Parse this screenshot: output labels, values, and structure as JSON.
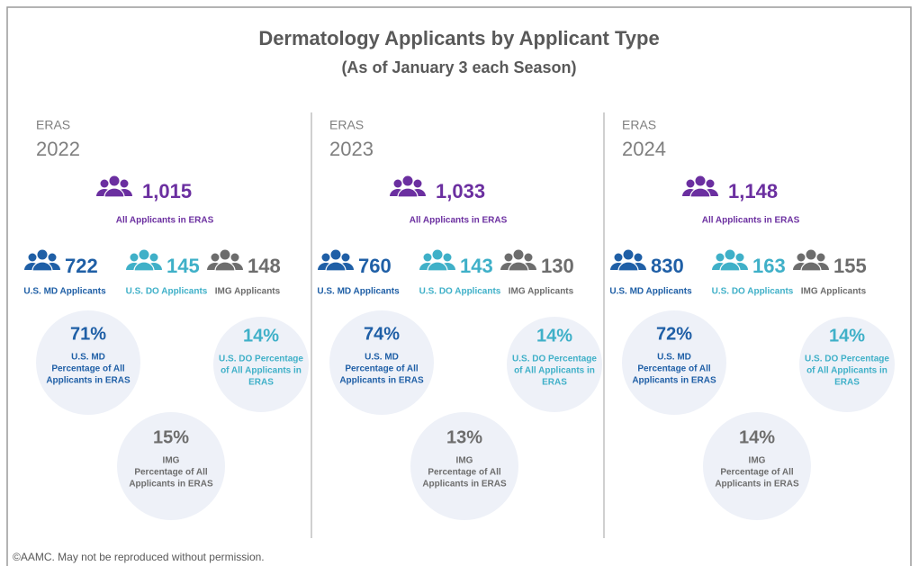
{
  "title": "Dermatology Applicants by Applicant Type",
  "subtitle": "(As of January 3 each Season)",
  "panels": [
    {
      "label": "ERAS",
      "year": "2022",
      "total": "1,015",
      "total_label": "All Applicants in ERAS",
      "groups": [
        {
          "count": "722",
          "label": "U.S. MD Applicants"
        },
        {
          "count": "145",
          "label": "U.S. DO Applicants"
        },
        {
          "count": "148",
          "label": "IMG Applicants"
        }
      ],
      "circles": [
        {
          "percent": "71%",
          "lines": [
            "U.S. MD",
            "Percentage of All",
            "Applicants in ERAS"
          ]
        },
        {
          "percent": "14%",
          "lines": [
            "U.S. DO Percentage",
            "of All Applicants in",
            "ERAS"
          ]
        },
        {
          "percent": "15%",
          "lines": [
            "IMG",
            "Percentage of All",
            "Applicants in ERAS"
          ]
        }
      ]
    },
    {
      "label": "ERAS",
      "year": "2023",
      "total": "1,033",
      "total_label": "All Applicants in ERAS",
      "groups": [
        {
          "count": "760",
          "label": "U.S. MD Applicants"
        },
        {
          "count": "143",
          "label": "U.S. DO Applicants"
        },
        {
          "count": "130",
          "label": "IMG Applicants"
        }
      ],
      "circles": [
        {
          "percent": "74%",
          "lines": [
            "U.S. MD",
            "Percentage of All",
            "Applicants in ERAS"
          ]
        },
        {
          "percent": "14%",
          "lines": [
            "U.S. DO Percentage",
            "of All Applicants in",
            "ERAS"
          ]
        },
        {
          "percent": "13%",
          "lines": [
            "IMG",
            "Percentage of All",
            "Applicants in ERAS"
          ]
        }
      ]
    },
    {
      "label": "ERAS",
      "year": "2024",
      "total": "1,148",
      "total_label": "All Applicants in ERAS",
      "groups": [
        {
          "count": "830",
          "label": "U.S. MD Applicants"
        },
        {
          "count": "163",
          "label": "U.S. DO Applicants"
        },
        {
          "count": "155",
          "label": "IMG Applicants"
        }
      ],
      "circles": [
        {
          "percent": "72%",
          "lines": [
            "U.S. MD",
            "Percentage of All",
            "Applicants in ERAS"
          ]
        },
        {
          "percent": "14%",
          "lines": [
            "U.S. DO Percentage",
            "of All Applicants in",
            "ERAS"
          ]
        },
        {
          "percent": "14%",
          "lines": [
            "IMG",
            "Percentage of All",
            "Applicants in ERAS"
          ]
        }
      ]
    }
  ],
  "footer": "©AAMC. May not be reproduced without permission."
}
